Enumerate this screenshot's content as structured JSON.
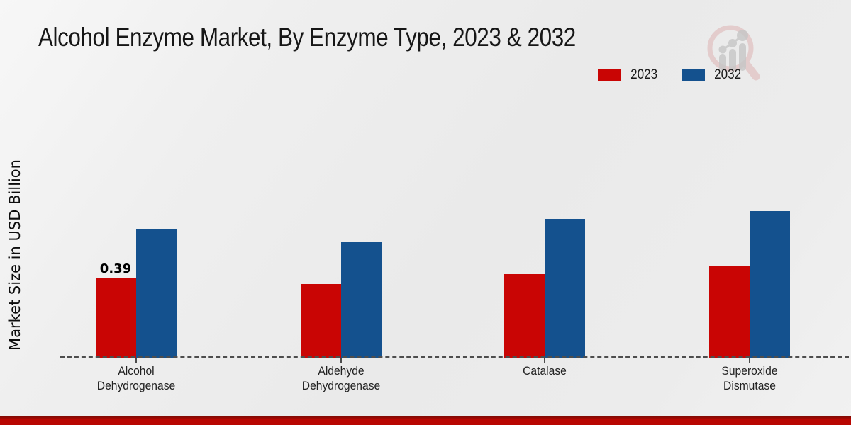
{
  "title": "Alcohol Enzyme Market, By Enzyme Type, 2023 & 2032",
  "ylabel": "Market Size in USD Billion",
  "legend": [
    {
      "label": "2023",
      "color": "#c90504"
    },
    {
      "label": "2032",
      "color": "#14518e"
    }
  ],
  "colors": {
    "bar_2023": "#c90504",
    "bar_2032": "#14518e",
    "footer_bar": "#b80601",
    "axis_dash": "#4d4d4d"
  },
  "watermark_icon": "magnifier-bar-chart-logo",
  "chart_data": {
    "type": "bar",
    "title": "Alcohol Enzyme Market, By Enzyme Type, 2023 & 2032",
    "categories": [
      "Alcohol Dehydrogenase",
      "Aldehyde Dehydrogenase",
      "Catalase",
      "Superoxide Dismutase"
    ],
    "series": [
      {
        "name": "2023",
        "color": "#c90504",
        "values": [
          0.39,
          0.36,
          0.41,
          0.45
        ]
      },
      {
        "name": "2032",
        "color": "#14518e",
        "values": [
          0.63,
          0.57,
          0.68,
          0.72
        ]
      }
    ],
    "data_labels": [
      {
        "series": "2023",
        "category_index": 0,
        "text": "0.39"
      }
    ],
    "xlabel": "",
    "ylabel": "Market Size in USD Billion",
    "ylim": [
      0,
      0.75
    ],
    "grid": false,
    "y_axis_ticks_visible": false,
    "legend_position": "top-right",
    "baseline_style": "dashed"
  }
}
